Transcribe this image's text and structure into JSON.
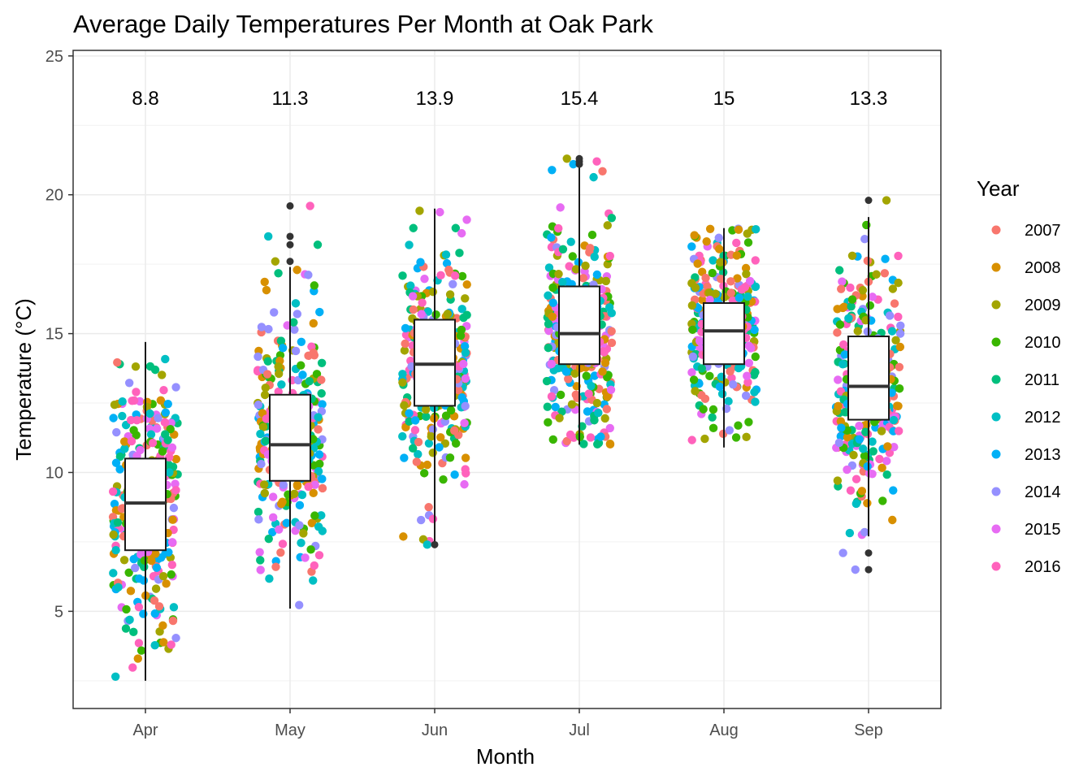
{
  "chart_data": {
    "type": "boxplot",
    "title": "Average Daily Temperatures Per Month at Oak Park",
    "xlabel": "Month",
    "ylabel": "Temperature (°C)",
    "ylim": [
      1.5,
      25.2
    ],
    "y_ticks": [
      5,
      10,
      15,
      20,
      25
    ],
    "y_minor_ticks": [
      2.5,
      7.5,
      12.5,
      17.5,
      22.5
    ],
    "grid": true,
    "categories": [
      "Apr",
      "May",
      "Jun",
      "Jul",
      "Aug",
      "Sep"
    ],
    "means": [
      "8.8",
      "11.3",
      "13.9",
      "15.4",
      "15",
      "13.3"
    ],
    "mean_label_y": 23.5,
    "boxes": [
      {
        "month": "Apr",
        "min": 2.5,
        "q1": 7.2,
        "median": 8.9,
        "q3": 10.5,
        "max": 14.7,
        "outliers": []
      },
      {
        "month": "May",
        "min": 5.1,
        "q1": 9.7,
        "median": 11.0,
        "q3": 12.8,
        "max": 17.4,
        "outliers": [
          17.6,
          18.2,
          18.5,
          19.6
        ]
      },
      {
        "month": "Jun",
        "min": 7.4,
        "q1": 12.4,
        "median": 13.9,
        "q3": 15.5,
        "max": 19.5,
        "outliers": [
          7.4
        ]
      },
      {
        "month": "Jul",
        "min": 11.0,
        "q1": 13.9,
        "median": 15.0,
        "q3": 16.7,
        "max": 21.0,
        "outliers": [
          21.1,
          21.2,
          21.3
        ]
      },
      {
        "month": "Aug",
        "min": 10.9,
        "q1": 13.9,
        "median": 15.1,
        "q3": 16.1,
        "max": 18.8,
        "outliers": []
      },
      {
        "month": "Sep",
        "min": 7.7,
        "q1": 11.9,
        "median": 13.1,
        "q3": 14.9,
        "max": 19.2,
        "outliers": [
          6.5,
          7.1,
          19.8
        ]
      }
    ],
    "series": [
      {
        "name": "2007",
        "color": "#F8766D"
      },
      {
        "name": "2008",
        "color": "#D89000"
      },
      {
        "name": "2009",
        "color": "#A3A500"
      },
      {
        "name": "2010",
        "color": "#39B600"
      },
      {
        "name": "2011",
        "color": "#00BF7D"
      },
      {
        "name": "2012",
        "color": "#00BFC4"
      },
      {
        "name": "2013",
        "color": "#00B0F6"
      },
      {
        "name": "2014",
        "color": "#9590FF"
      },
      {
        "name": "2015",
        "color": "#E76BF3"
      },
      {
        "name": "2016",
        "color": "#FF62BC"
      }
    ],
    "legend_title": "Year",
    "legend_position": "right"
  }
}
